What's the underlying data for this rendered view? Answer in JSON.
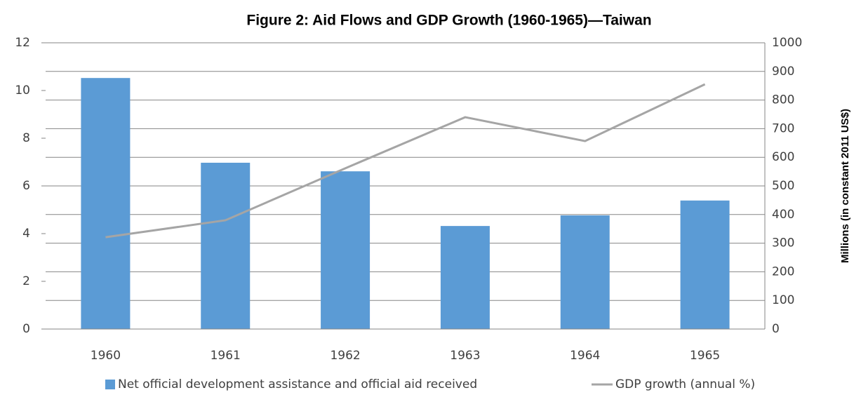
{
  "chart_data": {
    "type": "bar_line",
    "title": "Figure 2: Aid Flows and GDP Growth (1960-1965)—Taiwan",
    "categories": [
      "1960",
      "1961",
      "1962",
      "1963",
      "1964",
      "1965"
    ],
    "series": [
      {
        "name": "Net official development assistance and official aid received",
        "type": "bar",
        "color": "#5b9bd5",
        "axis": "y2",
        "values": [
          877,
          581,
          551,
          360,
          397,
          449
        ]
      },
      {
        "name": "GDP growth (annual %)",
        "type": "line",
        "color": "#a5a5a5",
        "axis": "y",
        "values": [
          3.85,
          4.56,
          6.74,
          8.88,
          7.88,
          10.26
        ]
      }
    ],
    "ylim": [
      0,
      12
    ],
    "yticks": [
      0,
      2,
      4,
      6,
      8,
      10,
      12
    ],
    "y2lim": [
      0,
      1000
    ],
    "y2ticks": [
      0,
      100,
      200,
      300,
      400,
      500,
      600,
      700,
      800,
      900,
      1000
    ],
    "y2label": "Millions  (in constant  2011 US$)",
    "grid": true,
    "legend": "bottom"
  }
}
